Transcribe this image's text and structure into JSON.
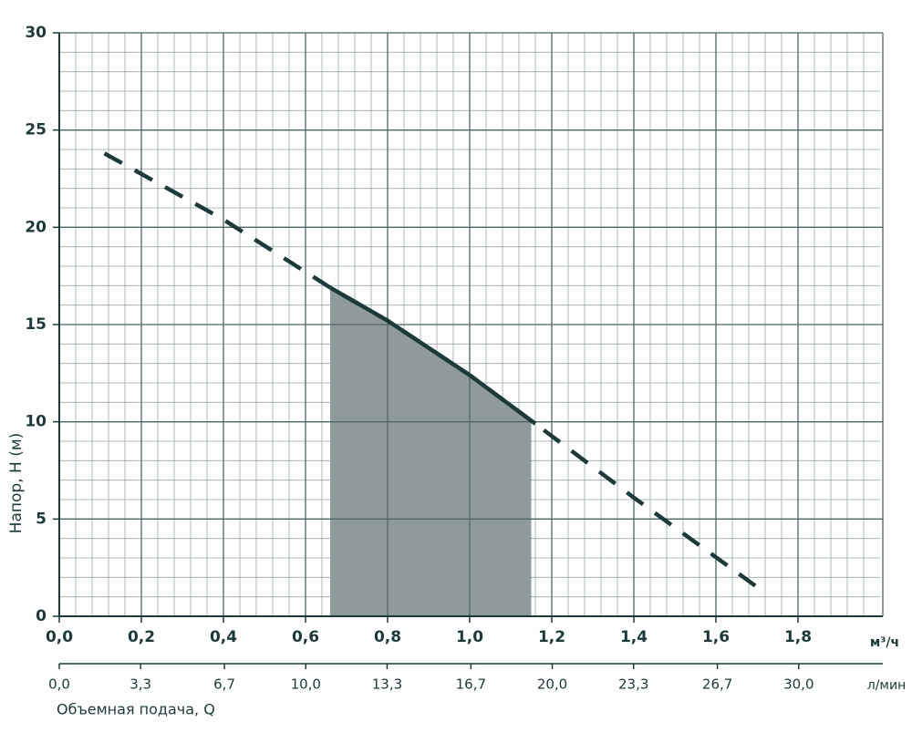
{
  "chart_data": {
    "type": "line",
    "y_label": "Напор, H (м)",
    "x_label": "Объемная подача, Q",
    "x_unit": "м³/ч",
    "x2_unit": "л/мин",
    "xlim": [
      0,
      2
    ],
    "ylim": [
      0,
      30
    ],
    "x2lim": [
      0,
      33.3
    ],
    "xticks": [
      {
        "value": 0,
        "label": "0,0"
      },
      {
        "value": 0.2,
        "label": "0,2"
      },
      {
        "value": 0.4,
        "label": "0,4"
      },
      {
        "value": 0.6,
        "label": "0,6"
      },
      {
        "value": 0.8,
        "label": "0,8"
      },
      {
        "value": 1.0,
        "label": "1,0"
      },
      {
        "value": 1.2,
        "label": "1,2"
      },
      {
        "value": 1.4,
        "label": "1,4"
      },
      {
        "value": 1.6,
        "label": "1,6"
      },
      {
        "value": 1.8,
        "label": "1,8"
      }
    ],
    "x2ticks": [
      {
        "value": 0,
        "label": "0,0"
      },
      {
        "value": 3.3,
        "label": "3,3"
      },
      {
        "value": 6.7,
        "label": "6,7"
      },
      {
        "value": 10,
        "label": "10,0"
      },
      {
        "value": 13.3,
        "label": "13,3"
      },
      {
        "value": 16.7,
        "label": "16,7"
      },
      {
        "value": 20,
        "label": "20,0"
      },
      {
        "value": 23.3,
        "label": "23,3"
      },
      {
        "value": 26.7,
        "label": "26,7"
      },
      {
        "value": 30,
        "label": "30,0"
      }
    ],
    "yticks": [
      0,
      5,
      10,
      15,
      20,
      25,
      30
    ],
    "grid": true,
    "series": [
      {
        "color": "#1d3a3b",
        "x": [
          0.11,
          0.4,
          0.66,
          0.8,
          1.0,
          1.16,
          1.4,
          1.72
        ],
        "values": [
          23.8,
          20.4,
          16.9,
          15.2,
          12.4,
          9.9,
          6.1,
          1.2
        ]
      }
    ],
    "working_range": {
      "x": [
        0.66,
        1.15
      ],
      "color": "#8f9b9b"
    }
  }
}
